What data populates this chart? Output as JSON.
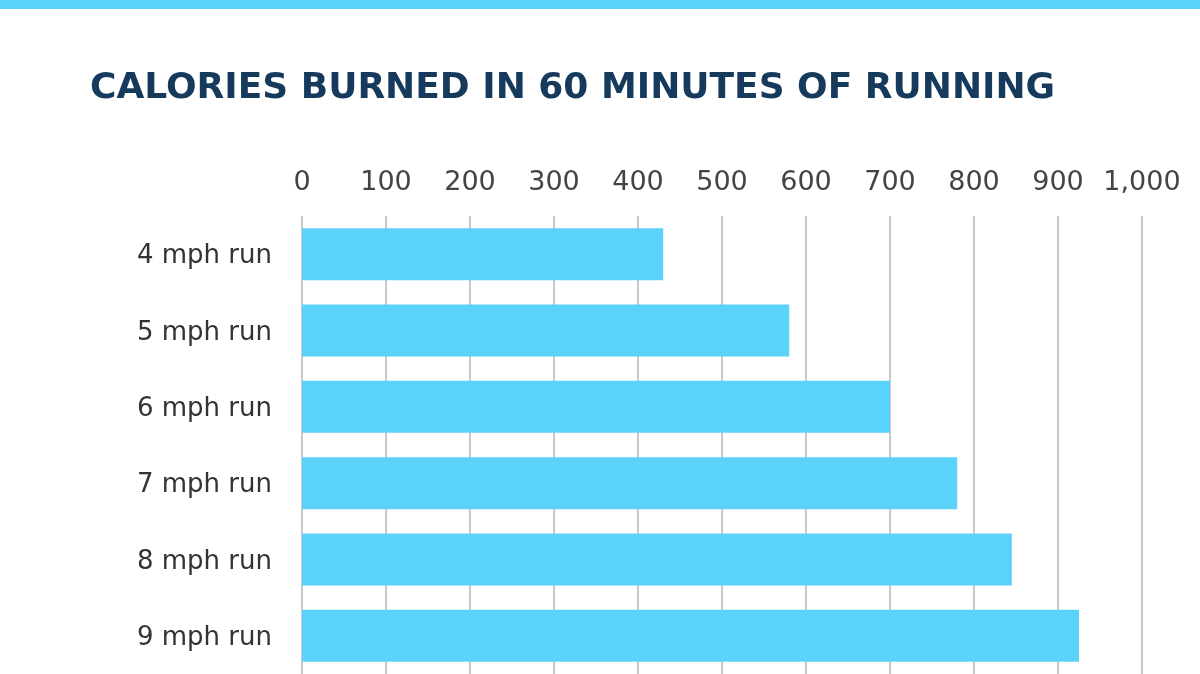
{
  "chart_data": {
    "type": "bar",
    "orientation": "horizontal",
    "title": "CALORIES BURNED IN 60 MINUTES OF RUNNING",
    "categories": [
      "4 mph run",
      "5 mph run",
      "6 mph run",
      "7 mph run",
      "8 mph run",
      "9 mph run"
    ],
    "values": [
      430,
      580,
      700,
      780,
      845,
      925
    ],
    "color": "#5ad2fa",
    "xlim": [
      0,
      1000
    ],
    "xticks": [
      0,
      100,
      200,
      300,
      400,
      500,
      600,
      700,
      800,
      900,
      {
        "value": 1000,
        "label": "1,000"
      }
    ],
    "grid": "x"
  }
}
